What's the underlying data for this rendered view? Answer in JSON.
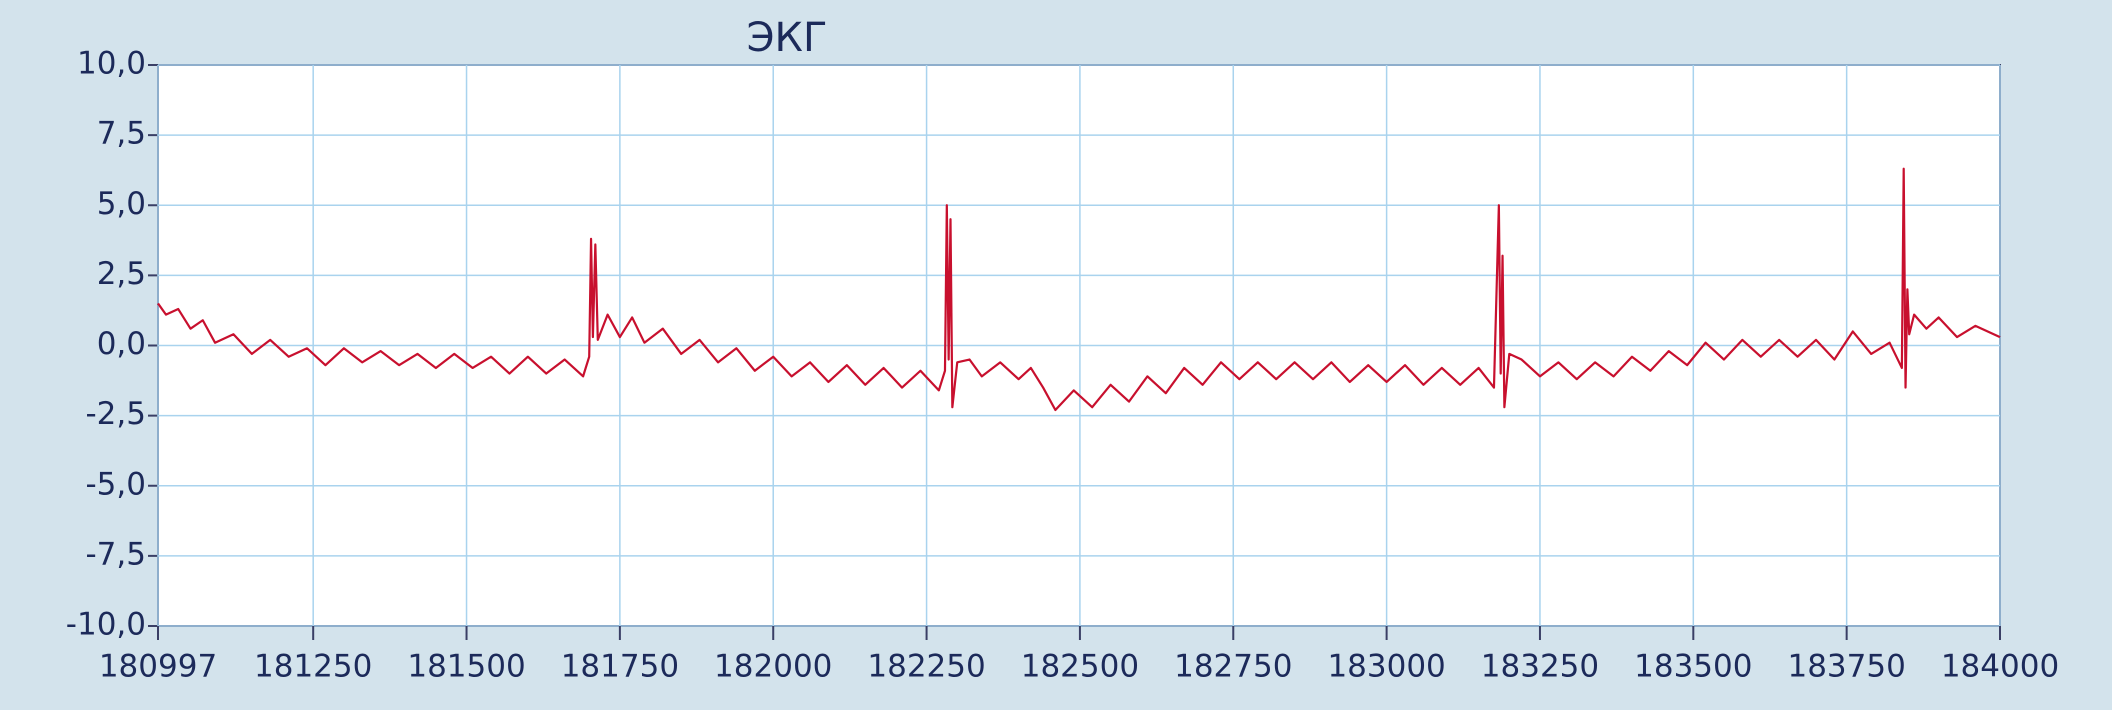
{
  "chart_data": {
    "type": "line",
    "title": "ЭКГ",
    "x": [
      180997,
      181010,
      181030,
      181050,
      181070,
      181090,
      181120,
      181150,
      181180,
      181210,
      181240,
      181270,
      181300,
      181330,
      181360,
      181390,
      181420,
      181450,
      181480,
      181510,
      181540,
      181570,
      181600,
      181630,
      181660,
      181690,
      181700,
      181703,
      181706,
      181710,
      181714,
      181730,
      181750,
      181770,
      181790,
      181820,
      181850,
      181880,
      181910,
      181940,
      181970,
      182000,
      182030,
      182060,
      182090,
      182120,
      182150,
      182180,
      182210,
      182240,
      182270,
      182280,
      182283,
      182286,
      182289,
      182292,
      182300,
      182320,
      182340,
      182370,
      182400,
      182420,
      182440,
      182460,
      182490,
      182520,
      182550,
      182580,
      182610,
      182640,
      182670,
      182700,
      182730,
      182760,
      182790,
      182820,
      182850,
      182880,
      182910,
      182940,
      182970,
      183000,
      183030,
      183060,
      183090,
      183120,
      183150,
      183175,
      183183,
      183186,
      183189,
      183192,
      183200,
      183220,
      183250,
      183280,
      183310,
      183340,
      183370,
      183400,
      183430,
      183460,
      183490,
      183520,
      183550,
      183580,
      183610,
      183640,
      183670,
      183700,
      183730,
      183760,
      183790,
      183820,
      183840,
      183843,
      183846,
      183849,
      183852,
      183860,
      183880,
      183900,
      183930,
      183960,
      184000
    ],
    "values": [
      1.5,
      1.1,
      1.3,
      0.6,
      0.9,
      0.1,
      0.4,
      -0.3,
      0.2,
      -0.4,
      -0.1,
      -0.7,
      -0.1,
      -0.6,
      -0.2,
      -0.7,
      -0.3,
      -0.8,
      -0.3,
      -0.8,
      -0.4,
      -1.0,
      -0.4,
      -1.0,
      -0.5,
      -1.1,
      -0.4,
      3.8,
      0.3,
      3.6,
      0.2,
      1.1,
      0.3,
      1.0,
      0.1,
      0.6,
      -0.3,
      0.2,
      -0.6,
      -0.1,
      -0.9,
      -0.4,
      -1.1,
      -0.6,
      -1.3,
      -0.7,
      -1.4,
      -0.8,
      -1.5,
      -0.9,
      -1.6,
      -0.9,
      5.0,
      -0.5,
      4.5,
      -2.2,
      -0.6,
      -0.5,
      -1.1,
      -0.6,
      -1.2,
      -0.8,
      -1.5,
      -2.3,
      -1.6,
      -2.2,
      -1.4,
      -2.0,
      -1.1,
      -1.7,
      -0.8,
      -1.4,
      -0.6,
      -1.2,
      -0.6,
      -1.2,
      -0.6,
      -1.2,
      -0.6,
      -1.3,
      -0.7,
      -1.3,
      -0.7,
      -1.4,
      -0.8,
      -1.4,
      -0.8,
      -1.5,
      5.0,
      -1.0,
      3.2,
      -2.2,
      -0.3,
      -0.5,
      -1.1,
      -0.6,
      -1.2,
      -0.6,
      -1.1,
      -0.4,
      -0.9,
      -0.2,
      -0.7,
      0.1,
      -0.5,
      0.2,
      -0.4,
      0.2,
      -0.4,
      0.2,
      -0.5,
      0.5,
      -0.3,
      0.1,
      -0.8,
      6.3,
      -1.5,
      2.0,
      0.4,
      1.1,
      0.6,
      1.0,
      0.3,
      0.7,
      0.3
    ],
    "color": "#c8102e",
    "xlim": [
      180997,
      184000
    ],
    "xticks": [
      180997,
      181250,
      181500,
      181750,
      182000,
      182250,
      182500,
      182750,
      183000,
      183250,
      183500,
      183750,
      184000
    ],
    "ylim": [
      -10,
      10
    ],
    "yticks": [
      {
        "value": -10,
        "label": "-10,0"
      },
      {
        "value": -7.5,
        "label": "-7,5"
      },
      {
        "value": -5,
        "label": "-5,0"
      },
      {
        "value": -2.5,
        "label": "-2,5"
      },
      {
        "value": 0,
        "label": "0,0"
      },
      {
        "value": 2.5,
        "label": "2,5"
      },
      {
        "value": 5,
        "label": "5,0"
      },
      {
        "value": 7.5,
        "label": "7,5"
      },
      {
        "value": 10,
        "label": "10,0"
      }
    ],
    "grid": true
  }
}
